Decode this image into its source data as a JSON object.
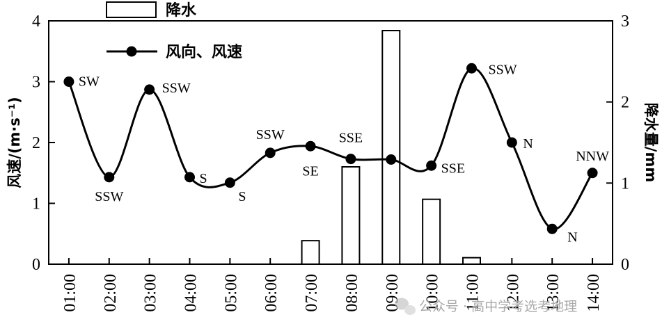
{
  "chart_data": {
    "type": "bar+line",
    "categories": [
      "01:00",
      "02:00",
      "03:00",
      "04:00",
      "05:00",
      "06:00",
      "07:00",
      "08:00",
      "09:00",
      "10:00",
      "11:00",
      "12:00",
      "13:00",
      "14:00"
    ],
    "series": [
      {
        "name": "降水",
        "type": "bar",
        "axis": "right",
        "values": [
          0,
          0,
          0,
          0,
          0,
          0,
          0.29,
          1.2,
          2.88,
          0.8,
          0.08,
          0,
          0,
          0
        ]
      },
      {
        "name": "风向、风速",
        "type": "line",
        "axis": "left",
        "values": [
          3.0,
          1.43,
          2.87,
          1.43,
          1.34,
          1.83,
          1.94,
          1.73,
          1.72,
          1.62,
          3.22,
          2.0,
          0.58,
          1.5
        ],
        "directions": [
          "SW",
          "SSW",
          "SSW",
          "S",
          "S",
          "SSW",
          "SE",
          "SSE",
          "",
          "SSE",
          "SSW",
          "N",
          "N",
          "NNW"
        ]
      }
    ],
    "ylabel_left": "风速/(m·s⁻¹)",
    "ylabel_right": "降水量/mm",
    "ylim_left": [
      0,
      4
    ],
    "ylim_right": [
      0,
      3
    ],
    "yticks_left": [
      "0",
      "1",
      "2",
      "3",
      "4"
    ],
    "yticks_right": [
      "0",
      "1",
      "2",
      "3"
    ],
    "legend_position": "top-left",
    "grid": false
  },
  "watermark": {
    "icon": "wechat-icon",
    "text": "公众号 · 高中学考选考地理"
  }
}
